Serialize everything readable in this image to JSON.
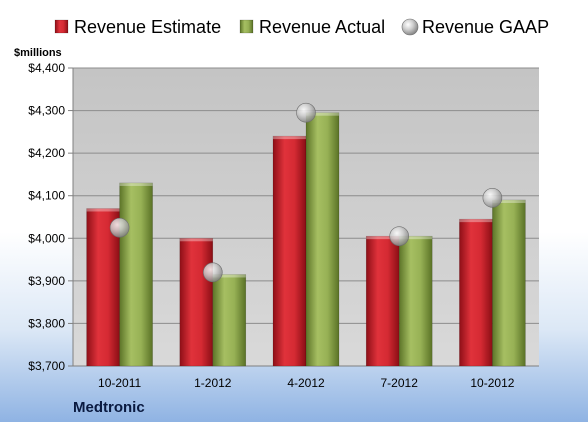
{
  "chart_data": {
    "type": "bar",
    "categories": [
      "10-2011",
      "1-2012",
      "4-2012",
      "7-2012",
      "10-2012"
    ],
    "series": [
      {
        "name": "Revenue Estimate",
        "kind": "bar",
        "color": "#c8202a",
        "values": [
          4070,
          4000,
          4240,
          4005,
          4045
        ]
      },
      {
        "name": "Revenue Actual",
        "kind": "bar",
        "color": "#8ea84c",
        "values": [
          4130,
          3915,
          4295,
          4005,
          4090
        ]
      },
      {
        "name": "Revenue GAAP",
        "kind": "marker",
        "color": "#bfbfbf",
        "values": [
          4025,
          3920,
          4295,
          4005,
          4095
        ]
      }
    ],
    "ylabel": "$millions",
    "ylim": [
      3700,
      4400
    ],
    "yticks": [
      "$3,700",
      "$3,800",
      "$3,900",
      "$4,000",
      "$4,100",
      "$4,200",
      "$4,300",
      "$4,400"
    ],
    "ytick_values": [
      3700,
      3800,
      3900,
      4000,
      4100,
      4200,
      4300,
      4400
    ],
    "grid": true,
    "legend_position": "top"
  },
  "company": "Medtronic"
}
